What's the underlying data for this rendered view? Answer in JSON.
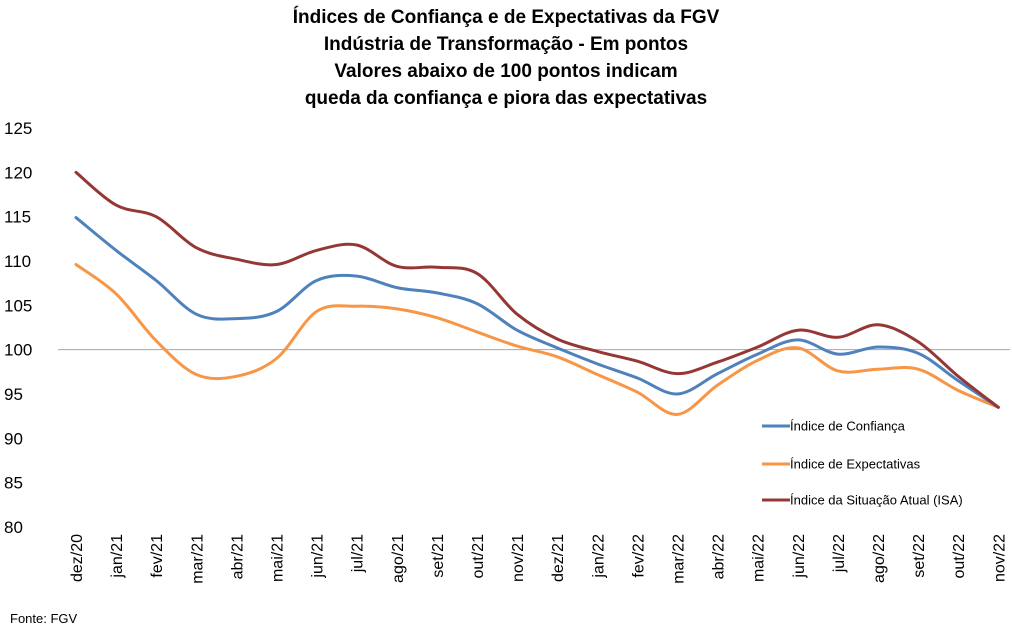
{
  "source": "Fonte: FGV",
  "chart_data": {
    "type": "line",
    "title_lines": [
      "Índices de Confiança e de Expectativas da FGV",
      "Indústria de Transformação - Em pontos",
      "Valores abaixo de 100 pontos indicam",
      "queda da confiança e piora das expectativas"
    ],
    "categories": [
      "dez/20",
      "jan/21",
      "fev/21",
      "mar/21",
      "abr/21",
      "mai/21",
      "jun/21",
      "jul/21",
      "ago/21",
      "set/21",
      "out/21",
      "nov/21",
      "dez/21",
      "jan/22",
      "fev/22",
      "mar/22",
      "abr/22",
      "mai/22",
      "jun/22",
      "jul/22",
      "ago/22",
      "set/22",
      "out/22",
      "nov/22"
    ],
    "ylim": [
      80,
      125
    ],
    "yticks": [
      80,
      85,
      90,
      95,
      100,
      105,
      110,
      115,
      120,
      125
    ],
    "reference_line": 100,
    "legend_position": "right",
    "series": [
      {
        "name": "Índice de Confiança",
        "color": "#4f81bd",
        "values": [
          114.9,
          111.2,
          107.8,
          104.0,
          103.5,
          104.3,
          107.8,
          108.3,
          107.0,
          106.4,
          105.2,
          102.2,
          100.2,
          98.4,
          96.8,
          95.0,
          97.3,
          99.5,
          101.1,
          99.5,
          100.3,
          99.6,
          96.5,
          93.5
        ]
      },
      {
        "name": "Índice de Expectativas",
        "color": "#f79646",
        "values": [
          109.6,
          106.3,
          101.0,
          97.2,
          97.0,
          99.0,
          104.3,
          104.9,
          104.6,
          103.6,
          102.0,
          100.4,
          99.2,
          97.2,
          95.2,
          92.7,
          96.0,
          98.8,
          100.2,
          97.6,
          97.8,
          97.8,
          95.4,
          93.5
        ]
      },
      {
        "name": "Índice da Situação Atual (ISA)",
        "color": "#953735",
        "values": [
          120.0,
          116.3,
          115.0,
          111.5,
          110.2,
          109.6,
          111.2,
          111.8,
          109.4,
          109.3,
          108.6,
          104.0,
          101.2,
          99.8,
          98.7,
          97.3,
          98.6,
          100.3,
          102.2,
          101.4,
          102.8,
          100.9,
          97.0,
          93.5
        ]
      }
    ]
  }
}
